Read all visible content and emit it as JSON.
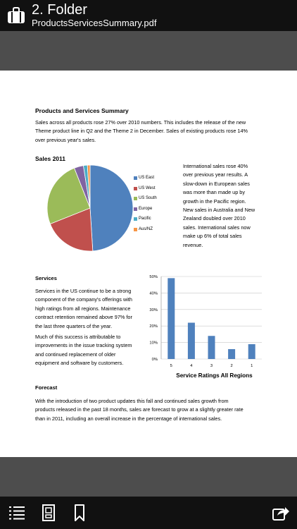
{
  "header": {
    "title": "2. Folder",
    "subtitle": "ProductsServicesSummary.pdf"
  },
  "document": {
    "heading": "Products and Services Summary",
    "intro_lines": [
      "Sales across all products rose 27% over 2010 numbers.  This includes the release of the new",
      "Theme product line in Q2 and the Theme 2 in December.  Sales of existing products rose 14%",
      "over previous year's sales."
    ],
    "sales_title": "Sales 2011",
    "intl_lines": [
      "International sales rose 40%",
      "over previous year results.  A",
      "slow-down in European sales",
      "was more than made up by",
      "growth in the Pacific region.",
      "New sales in Australia and New",
      "Zealand doubled over 2010",
      "sales.  International sales now",
      "make up 6% of total sales",
      "revenue."
    ],
    "services_heading": "Services",
    "services_p1": [
      "Services in the US continue to be a strong",
      "component of the company's offerings with",
      "high ratings from all regions.  Maintenance",
      "contract retention remained above 97% for",
      "the last three quarters of the year."
    ],
    "services_p2": [
      "Much of this success is attributable to",
      "improvements in the issue tracking system",
      "and continued replacement of older",
      "equipment and software by customers."
    ],
    "forecast_heading": "Forecast",
    "forecast_lines": [
      "With the introduction of two product updates this fall and continued sales growth from",
      "products released in the past 18 months, sales are forecast to grow at a slightly greater rate",
      "than in 2011, including an overall increase in the percentage of international sales."
    ]
  },
  "chart_data": [
    {
      "type": "pie",
      "title": "Sales 2011",
      "legend_position": "right",
      "labels": [
        "US East",
        "US West",
        "US South",
        "Europe",
        "Pacific",
        "Aus/NZ"
      ],
      "values": [
        49,
        20,
        25,
        3.5,
        1.5,
        1
      ],
      "colors": [
        "#4f81bd",
        "#c0504d",
        "#9bbb59",
        "#8064a2",
        "#4bacc6",
        "#f79646"
      ]
    },
    {
      "type": "bar",
      "title": "Service Ratings All Regions",
      "categories": [
        "5",
        "4",
        "3",
        "2",
        "1"
      ],
      "values": [
        49,
        22,
        14,
        6,
        9
      ],
      "ylim": [
        0,
        50
      ],
      "yticks": [
        "0%",
        "10%",
        "20%",
        "30%",
        "40%",
        "50%"
      ],
      "grid": true,
      "color": "#4f81bd"
    }
  ],
  "toolbar": {
    "icons": [
      "list-icon",
      "page-view-icon",
      "bookmark-icon",
      "share-icon"
    ]
  }
}
